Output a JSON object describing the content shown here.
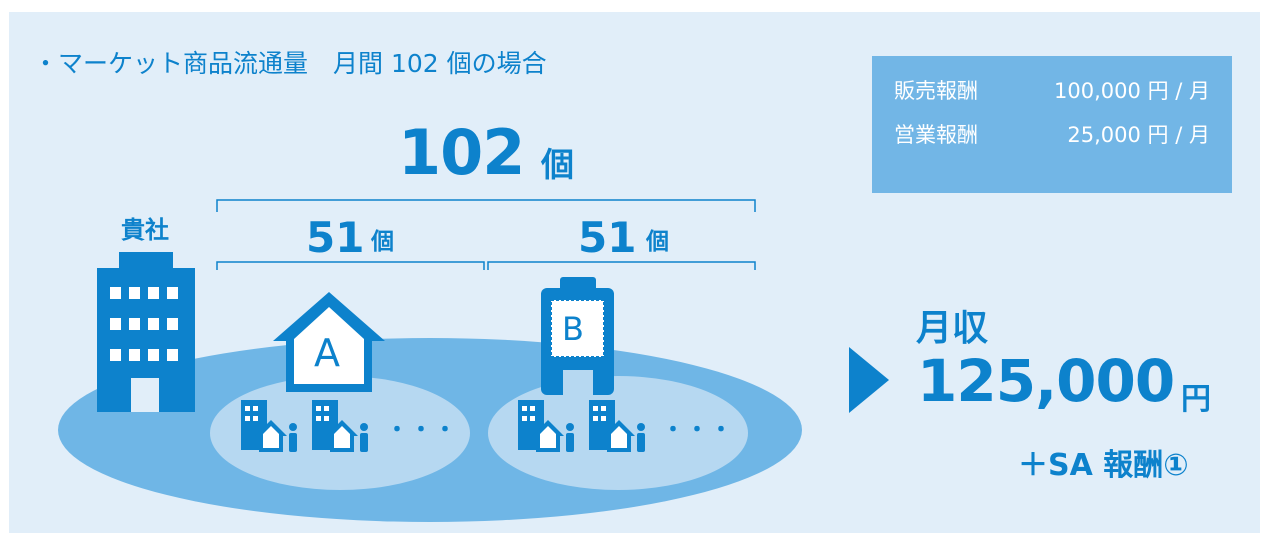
{
  "title": "・マーケット商品流通量　月間 102 個の場合",
  "reward_box": {
    "rows": [
      {
        "label": "販売報酬",
        "value": "100,000 円 / 月"
      },
      {
        "label": "営業報酬",
        "value": "25,000 円 / 月"
      }
    ]
  },
  "total": {
    "number": "102",
    "unit": "個"
  },
  "branches": [
    {
      "number": "51",
      "unit": "個"
    },
    {
      "number": "51",
      "unit": "個"
    }
  ],
  "company_label": "貴社",
  "node_a_label": "A",
  "node_b_label": "B",
  "ellipsis": "・・・",
  "income": {
    "label": "月収",
    "number": "125,000",
    "unit": "円",
    "extra": "＋SA 報酬①"
  },
  "colors": {
    "panel_bg": "#e1eef9",
    "primary": "#0d82cc",
    "outer_ellipse": "#6fb6e6",
    "inner_ellipse": "#b6d8f1",
    "box_bg": "#72b6e6"
  }
}
